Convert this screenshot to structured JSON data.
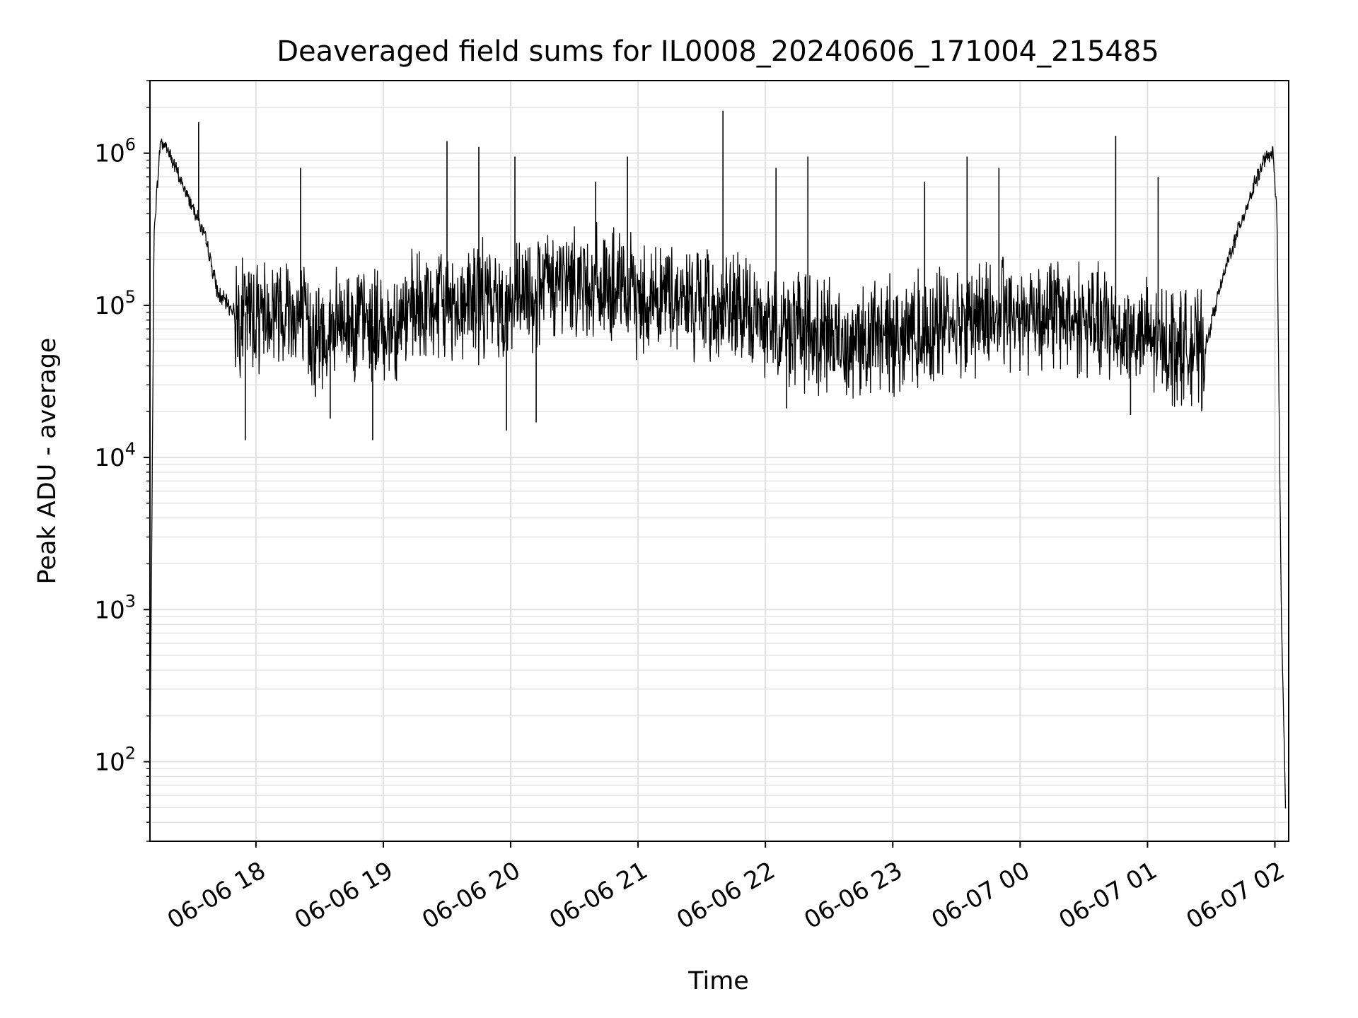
{
  "chart_data": {
    "type": "line",
    "title": "Deaveraged field sums for IL0008_20240606_171004_215485",
    "xlabel": "Time",
    "ylabel": "Peak ADU - average",
    "yscale": "log",
    "ylim": [
      30,
      3000000
    ],
    "xlim": [
      "2024-06-06 17:10:04",
      "2024-06-07 02:06:30"
    ],
    "grid": true,
    "line_color": "#000000",
    "x_ticks": [
      {
        "t": "2024-06-06 18:00",
        "label": "06-06 18"
      },
      {
        "t": "2024-06-06 19:00",
        "label": "06-06 19"
      },
      {
        "t": "2024-06-06 20:00",
        "label": "06-06 20"
      },
      {
        "t": "2024-06-06 21:00",
        "label": "06-06 21"
      },
      {
        "t": "2024-06-06 22:00",
        "label": "06-06 22"
      },
      {
        "t": "2024-06-06 23:00",
        "label": "06-06 23"
      },
      {
        "t": "2024-06-07 00:00",
        "label": "06-07 00"
      },
      {
        "t": "2024-06-07 01:00",
        "label": "06-07 01"
      },
      {
        "t": "2024-06-07 02:00",
        "label": "06-07 02"
      }
    ],
    "y_ticks": [
      {
        "value": 100,
        "base": "10",
        "exp": "2"
      },
      {
        "value": 1000,
        "base": "10",
        "exp": "3"
      },
      {
        "value": 10000,
        "base": "10",
        "exp": "4"
      },
      {
        "value": 100000,
        "base": "10",
        "exp": "5"
      },
      {
        "value": 1000000,
        "base": "10",
        "exp": "6"
      }
    ],
    "series": [
      {
        "x": [
          "2024-06-06 17:10",
          "2024-06-06 17:12",
          "2024-06-06 17:15",
          "2024-06-06 17:18",
          "2024-06-06 17:22",
          "2024-06-06 17:27",
          "2024-06-06 17:32",
          "2024-06-06 17:37",
          "2024-06-06 17:42",
          "2024-06-06 17:50",
          "2024-06-06 18:00",
          "2024-06-06 18:15",
          "2024-06-06 18:30",
          "2024-06-06 18:45",
          "2024-06-06 19:00",
          "2024-06-06 19:15",
          "2024-06-06 19:30",
          "2024-06-06 19:45",
          "2024-06-06 20:00",
          "2024-06-06 20:15",
          "2024-06-06 20:30",
          "2024-06-06 20:45",
          "2024-06-06 21:00",
          "2024-06-06 21:15",
          "2024-06-06 21:30",
          "2024-06-06 21:45",
          "2024-06-06 22:00",
          "2024-06-06 22:15",
          "2024-06-06 22:30",
          "2024-06-06 22:45",
          "2024-06-06 23:00",
          "2024-06-06 23:15",
          "2024-06-06 23:30",
          "2024-06-06 23:45",
          "2024-06-07 00:00",
          "2024-06-07 00:15",
          "2024-06-07 00:30",
          "2024-06-07 00:45",
          "2024-06-07 01:00",
          "2024-06-07 01:15",
          "2024-06-07 01:27",
          "2024-06-07 01:32",
          "2024-06-07 01:38",
          "2024-06-07 01:44",
          "2024-06-07 01:50",
          "2024-06-07 01:55",
          "2024-06-07 01:59",
          "2024-06-07 02:01",
          "2024-06-07 02:03",
          "2024-06-07 02:05"
        ],
        "values": [
          60,
          300000,
          1200000,
          1100000,
          800000,
          550000,
          400000,
          250000,
          120000,
          90000,
          90000,
          100000,
          60000,
          80000,
          70000,
          90000,
          100000,
          110000,
          100000,
          130000,
          150000,
          130000,
          110000,
          120000,
          100000,
          90000,
          80000,
          70000,
          60000,
          60000,
          65000,
          70000,
          80000,
          85000,
          90000,
          90000,
          80000,
          70000,
          60000,
          55000,
          50000,
          100000,
          200000,
          350000,
          600000,
          900000,
          1000000,
          400000,
          1000,
          50
        ]
      }
    ],
    "spikes": [
      {
        "t": "2024-06-06 17:33",
        "value": 1600000
      },
      {
        "t": "2024-06-06 18:21",
        "value": 800000
      },
      {
        "t": "2024-06-06 19:30",
        "value": 1200000
      },
      {
        "t": "2024-06-06 19:45",
        "value": 1100000
      },
      {
        "t": "2024-06-06 20:02",
        "value": 950000
      },
      {
        "t": "2024-06-06 20:40",
        "value": 650000
      },
      {
        "t": "2024-06-06 20:55",
        "value": 950000
      },
      {
        "t": "2024-06-06 21:40",
        "value": 1900000
      },
      {
        "t": "2024-06-06 22:05",
        "value": 800000
      },
      {
        "t": "2024-06-06 22:20",
        "value": 950000
      },
      {
        "t": "2024-06-06 23:15",
        "value": 650000
      },
      {
        "t": "2024-06-06 23:35",
        "value": 950000
      },
      {
        "t": "2024-06-06 23:50",
        "value": 800000
      },
      {
        "t": "2024-06-07 00:45",
        "value": 1300000
      },
      {
        "t": "2024-06-07 01:05",
        "value": 700000
      }
    ],
    "dips": [
      {
        "t": "2024-06-06 17:55",
        "value": 13000
      },
      {
        "t": "2024-06-06 18:28",
        "value": 25000
      },
      {
        "t": "2024-06-06 18:35",
        "value": 18000
      },
      {
        "t": "2024-06-06 18:55",
        "value": 13000
      },
      {
        "t": "2024-06-06 19:58",
        "value": 15000
      },
      {
        "t": "2024-06-06 20:12",
        "value": 17000
      },
      {
        "t": "2024-06-06 22:10",
        "value": 21000
      },
      {
        "t": "2024-06-07 00:52",
        "value": 19000
      }
    ]
  }
}
